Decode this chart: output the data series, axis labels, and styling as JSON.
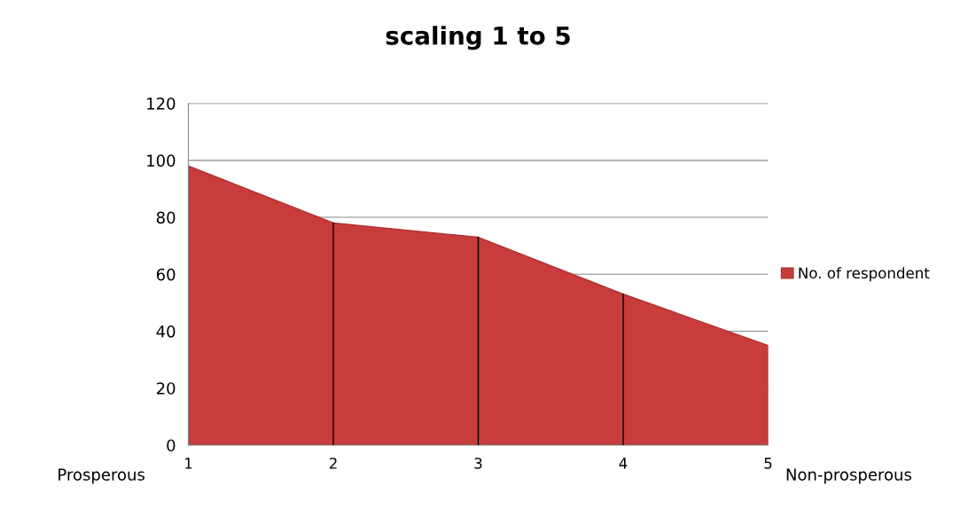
{
  "chart_data": {
    "type": "area",
    "title": "scaling 1 to 5",
    "categories": [
      "1",
      "2",
      "3",
      "4",
      "5"
    ],
    "series": [
      {
        "name": "No. of respondent",
        "color": "#c83c3c",
        "values": [
          98,
          78,
          73,
          53,
          35
        ]
      }
    ],
    "ylim": [
      0,
      120
    ],
    "yticks": [
      0,
      20,
      40,
      60,
      80,
      100,
      120
    ],
    "grid": "y",
    "legend": "right",
    "ref_lines": [
      {
        "axis": "x",
        "value": "2",
        "color": "#000000"
      },
      {
        "axis": "x",
        "value": "3",
        "color": "#000000"
      },
      {
        "axis": "x",
        "value": "4",
        "color": "#000000"
      }
    ],
    "annotations": [
      "Prosperous",
      "Non-prosperous"
    ]
  }
}
